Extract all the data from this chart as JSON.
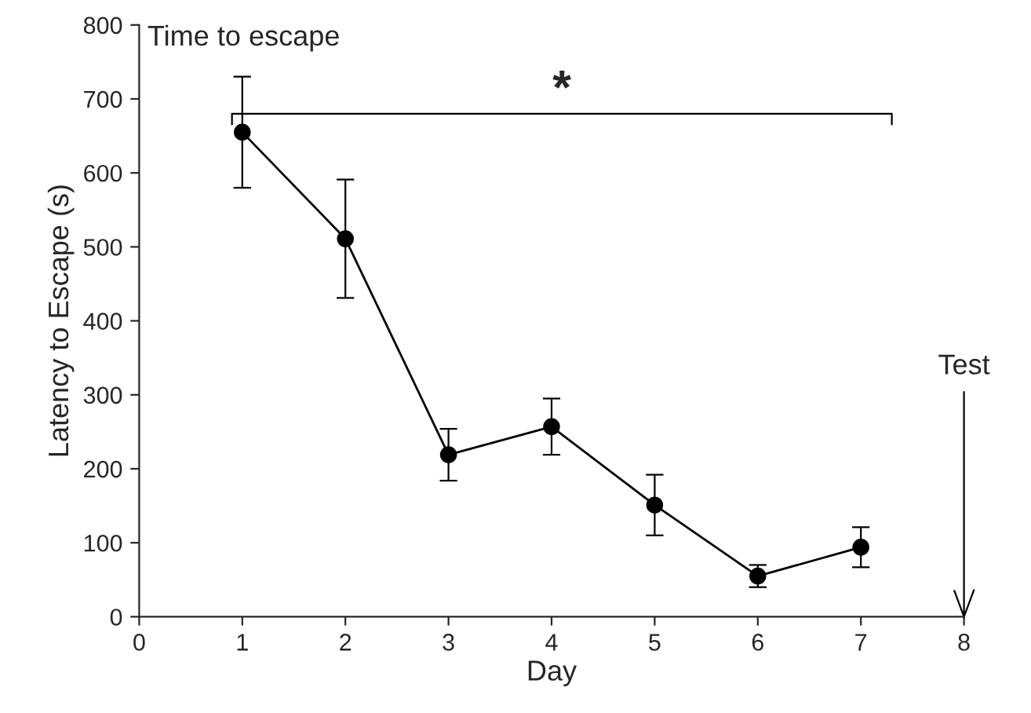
{
  "chart_data": {
    "type": "line",
    "title": "Time to escape",
    "xlabel": "Day",
    "ylabel": "Latency to Escape (s)",
    "x": [
      1,
      2,
      3,
      4,
      5,
      6,
      7
    ],
    "series": [
      {
        "color": "#000000",
        "values": [
          655,
          511,
          219,
          257,
          151,
          55,
          94
        ],
        "errors": [
          75,
          80,
          35,
          38,
          41,
          15,
          27
        ]
      }
    ],
    "xlim": [
      0,
      8
    ],
    "xticks": [
      0,
      1,
      2,
      3,
      4,
      5,
      6,
      7,
      8
    ],
    "ylim": [
      0,
      800
    ],
    "yticks": [
      0,
      100,
      200,
      300,
      400,
      500,
      600,
      700,
      800
    ],
    "grid": false,
    "legend": false,
    "marker": "circle",
    "line_style": "solid",
    "annotations": [
      "*",
      "Test"
    ]
  }
}
